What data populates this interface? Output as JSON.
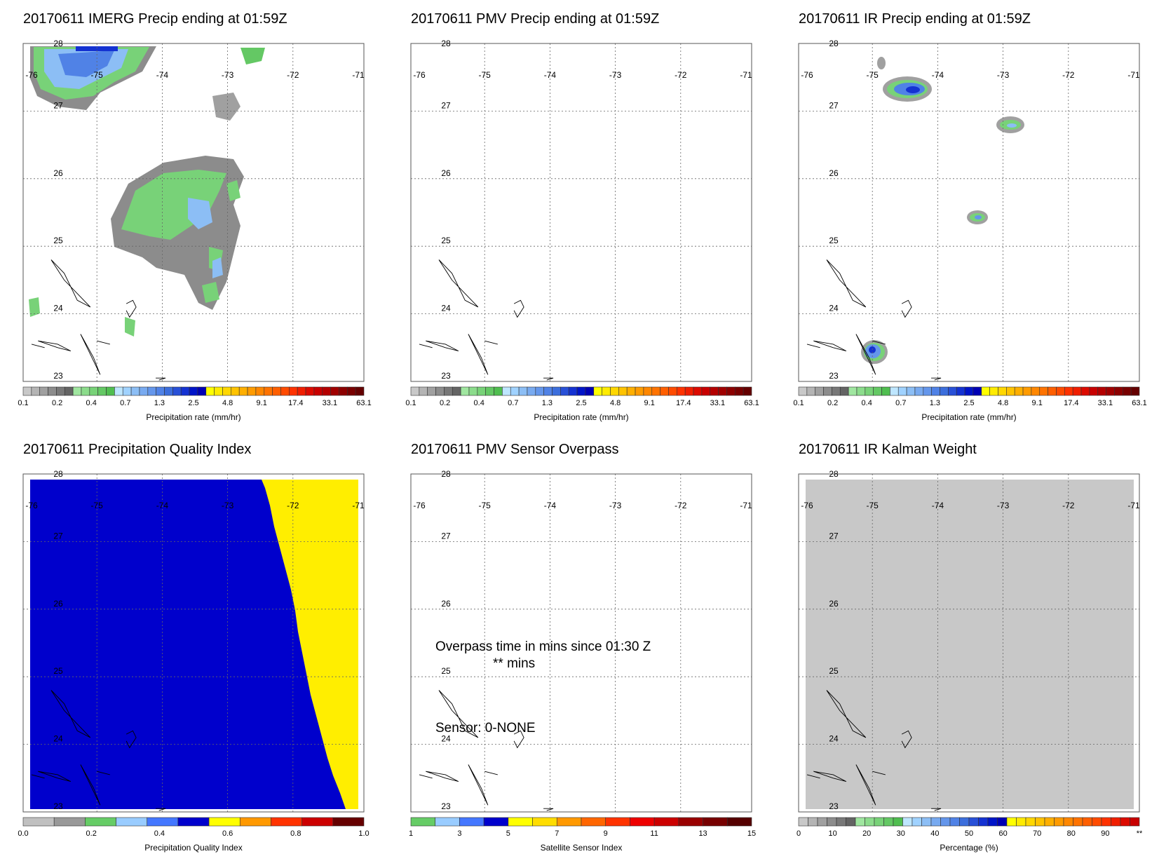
{
  "panels": [
    {
      "title": "20170611 IMERG Precip ending at 01:59Z",
      "colorbar": "precip",
      "map": "imerg",
      "cbar_ticks": [
        "0.1",
        "0.2",
        "0.4",
        "0.7",
        "1.3",
        "2.5",
        "4.8",
        "9.1",
        "17.4",
        "33.1",
        "63.1"
      ],
      "cbar_label": "Precipitation rate (mm/hr)"
    },
    {
      "title": "20170611 PMV Precip ending at 01:59Z",
      "colorbar": "precip",
      "map": "empty",
      "cbar_ticks": [
        "0.1",
        "0.2",
        "0.4",
        "0.7",
        "1.3",
        "2.5",
        "4.8",
        "9.1",
        "17.4",
        "33.1",
        "63.1"
      ],
      "cbar_label": "Precipitation rate (mm/hr)"
    },
    {
      "title": "20170611 IR Precip ending at 01:59Z",
      "colorbar": "precip",
      "map": "ir",
      "cbar_ticks": [
        "0.1",
        "0.2",
        "0.4",
        "0.7",
        "1.3",
        "2.5",
        "4.8",
        "9.1",
        "17.4",
        "33.1",
        "63.1"
      ],
      "cbar_label": "Precipitation rate (mm/hr)"
    },
    {
      "title": "20170611 Precipitation Quality Index",
      "colorbar": "pqi",
      "map": "pqi",
      "cbar_ticks": [
        "0.0",
        "0.2",
        "0.4",
        "0.6",
        "0.8",
        "1.0"
      ],
      "cbar_label": "Precipitation Quality Index"
    },
    {
      "title": "20170611 PMV Sensor Overpass",
      "colorbar": "sensor",
      "map": "sensor",
      "cbar_ticks": [
        "1",
        "3",
        "5",
        "7",
        "9",
        "11",
        "13",
        "15"
      ],
      "cbar_label": "Satellite Sensor Index",
      "overlay": {
        "line1": "Overpass time in mins since 01:30 Z",
        "line2": "** mins",
        "sensor": "Sensor:   0-NONE"
      }
    },
    {
      "title": "20170611 IR Kalman Weight",
      "colorbar": "pct",
      "map": "kalman",
      "cbar_ticks": [
        "0",
        "10",
        "20",
        "30",
        "40",
        "50",
        "60",
        "70",
        "80",
        "90",
        "**"
      ],
      "cbar_label": "Percentage (%)"
    }
  ],
  "map_axes": {
    "lon_labels": [
      "-76",
      "-75",
      "-74",
      "-73",
      "-72",
      "-71"
    ],
    "lat_labels": [
      "28",
      "27",
      "26",
      "25",
      "24",
      "23"
    ]
  },
  "colors": {
    "precip": [
      "#c8c8c8",
      "#b4b4b4",
      "#a0a0a0",
      "#8c8c8c",
      "#787878",
      "#646464",
      "#a0e6a0",
      "#8cdc8c",
      "#78d278",
      "#64c864",
      "#50be50",
      "#bee6ff",
      "#a0d2ff",
      "#8cbef5",
      "#78aaf0",
      "#6496eb",
      "#5082e6",
      "#3c6edc",
      "#2850d7",
      "#1432d2",
      "#0014c8",
      "#0000b4",
      "#ffff00",
      "#ffeb00",
      "#ffd700",
      "#ffc300",
      "#ffaf00",
      "#ff9b00",
      "#ff8700",
      "#ff7300",
      "#ff5f00",
      "#ff4b00",
      "#ff3200",
      "#f01e00",
      "#dc0a00",
      "#c80000",
      "#b40000",
      "#a00000",
      "#8c0000",
      "#780000",
      "#640000"
    ],
    "pqi": [
      "#c0c0c0",
      "#999999",
      "#66cc66",
      "#99ccff",
      "#4477ff",
      "#0000cc",
      "#ffff00",
      "#ff9900",
      "#ff3300",
      "#cc0000",
      "#660000"
    ],
    "sensor": [
      "#66cc66",
      "#99ccff",
      "#4477ff",
      "#0000cc",
      "#ffff00",
      "#ffdd00",
      "#ff9900",
      "#ff6600",
      "#ff3300",
      "#ee0000",
      "#cc0000",
      "#990000",
      "#770000",
      "#550000"
    ],
    "pct": [
      "#c8c8c8",
      "#b4b4b4",
      "#a0a0a0",
      "#8c8c8c",
      "#787878",
      "#646464",
      "#a0e6a0",
      "#8cdc8c",
      "#78d278",
      "#64c864",
      "#50be50",
      "#bee6ff",
      "#a0d2ff",
      "#8cbef5",
      "#78aaf0",
      "#6496eb",
      "#5082e6",
      "#3c6edc",
      "#2850d7",
      "#1432d2",
      "#0014c8",
      "#0000b4",
      "#ffff00",
      "#ffeb00",
      "#ffd700",
      "#ffc300",
      "#ffaf00",
      "#ff9b00",
      "#ff8700",
      "#ff7300",
      "#ff5f00",
      "#ff4b00",
      "#ff3200",
      "#f01e00",
      "#dc0a00",
      "#c80000"
    ],
    "field_blue": "#0000cc",
    "field_yellow": "#ffee00",
    "field_gray": "#c8c8c8"
  }
}
